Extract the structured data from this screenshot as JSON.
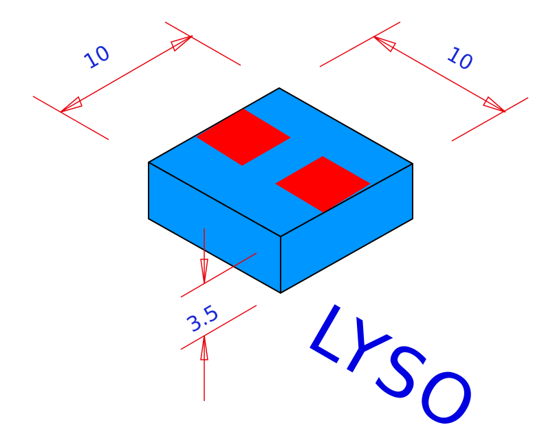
{
  "drawing": {
    "material_label": "LYSO",
    "dimensions": {
      "width_left": "10",
      "width_right": "10",
      "thickness": "3.5"
    },
    "colors": {
      "crystal": "#0096ff",
      "pads": "#ff0000",
      "dimension_lines": "#e8000b",
      "dimension_text": "#1a2bd6",
      "label": "#0000e0",
      "edges": "#000000"
    }
  }
}
